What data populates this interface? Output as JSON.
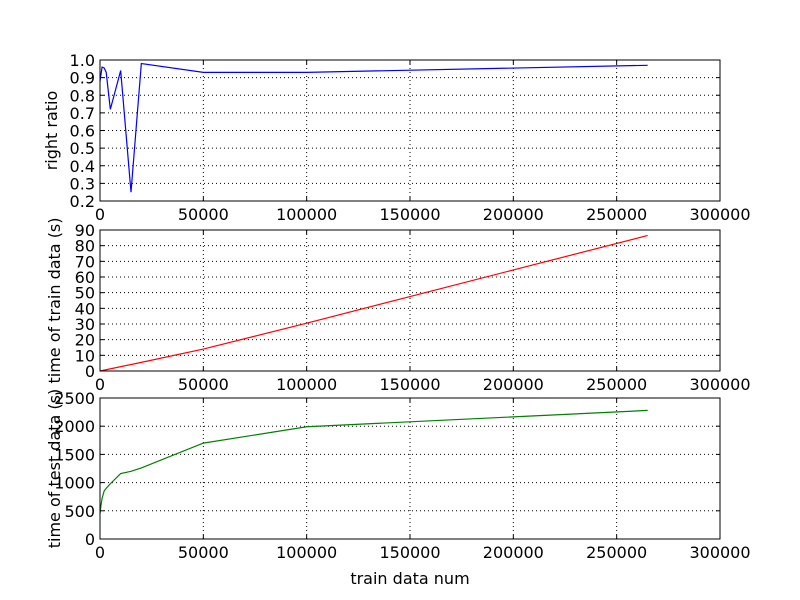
{
  "chart_data": [
    {
      "type": "line",
      "title": "",
      "xlabel": "",
      "ylabel": "right ratio",
      "xlim": [
        0,
        300000
      ],
      "ylim": [
        0.2,
        1.0
      ],
      "grid": true,
      "xticks": [
        "0",
        "50000",
        "100000",
        "150000",
        "200000",
        "250000",
        "300000"
      ],
      "yticks": [
        "0.2",
        "0.3",
        "0.4",
        "0.5",
        "0.6",
        "0.7",
        "0.8",
        "0.9",
        "1.0"
      ],
      "series": [
        {
          "color": "#0000ff",
          "x": [
            0,
            1000,
            2000,
            3000,
            5000,
            10000,
            15000,
            20000,
            50000,
            100000,
            265000
          ],
          "y": [
            0.88,
            0.96,
            0.955,
            0.93,
            0.72,
            0.94,
            0.25,
            0.98,
            0.93,
            0.93,
            0.97
          ]
        }
      ]
    },
    {
      "type": "line",
      "title": "",
      "xlabel": "",
      "ylabel": "time of train data (s)",
      "xlim": [
        0,
        300000
      ],
      "ylim": [
        0,
        90
      ],
      "grid": true,
      "xticks": [
        "0",
        "50000",
        "100000",
        "150000",
        "200000",
        "250000",
        "300000"
      ],
      "yticks": [
        "0",
        "10",
        "20",
        "30",
        "40",
        "50",
        "60",
        "70",
        "80",
        "90"
      ],
      "series": [
        {
          "color": "#ff0000",
          "x": [
            0,
            20000,
            50000,
            100000,
            150000,
            200000,
            265000
          ],
          "y": [
            0,
            5.5,
            14,
            30.5,
            47.5,
            64.5,
            86.5
          ]
        }
      ]
    },
    {
      "type": "line",
      "title": "",
      "xlabel": "train data num",
      "ylabel": "time of test data (s)",
      "xlim": [
        0,
        300000
      ],
      "ylim": [
        0,
        2500
      ],
      "grid": true,
      "xticks": [
        "0",
        "50000",
        "100000",
        "150000",
        "200000",
        "250000",
        "300000"
      ],
      "yticks": [
        "0",
        "500",
        "1000",
        "1500",
        "2000",
        "2500"
      ],
      "series": [
        {
          "color": "#008000",
          "x": [
            0,
            500,
            1000,
            2000,
            3000,
            5000,
            10000,
            15000,
            20000,
            50000,
            100000,
            265000
          ],
          "y": [
            450,
            600,
            720,
            850,
            900,
            980,
            1160,
            1200,
            1260,
            1700,
            1990,
            2280
          ]
        }
      ]
    }
  ]
}
